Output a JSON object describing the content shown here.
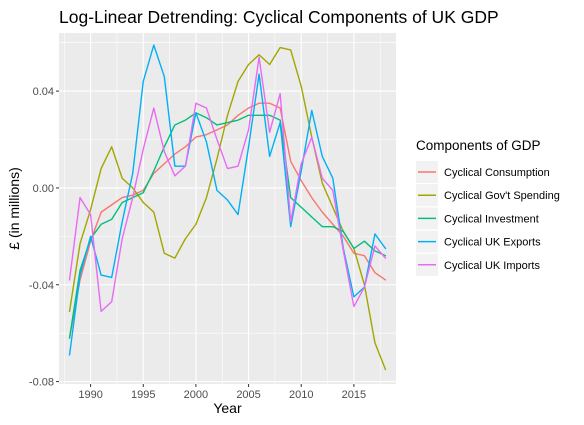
{
  "chart_data": {
    "type": "line",
    "title": "Log-Linear Detrending: Cyclical Components of UK GDP",
    "xlabel": "Year",
    "ylabel": "£ (in millions)",
    "xlim": [
      1987,
      2019
    ],
    "ylim": [
      -0.081,
      0.064
    ],
    "x_ticks": [
      1990,
      1995,
      2000,
      2005,
      2010,
      2015
    ],
    "x_tick_labels": [
      "1990",
      "1995",
      "2000",
      "2005",
      "2010",
      "2015"
    ],
    "y_ticks": [
      -0.08,
      -0.04,
      0.0,
      0.04
    ],
    "y_tick_labels": [
      "-0.08",
      "-0.04",
      "0.00",
      "0.04"
    ],
    "grid": true,
    "legend": {
      "title": "Components of GDP",
      "position": "right"
    },
    "x": [
      1988,
      1989,
      1990,
      1991,
      1992,
      1993,
      1994,
      1995,
      1996,
      1997,
      1998,
      1999,
      2000,
      2001,
      2002,
      2003,
      2004,
      2005,
      2006,
      2007,
      2008,
      2009,
      2010,
      2011,
      2012,
      2013,
      2014,
      2015,
      2016,
      2017,
      2018
    ],
    "series": [
      {
        "name": "Cyclical Consumption",
        "color": "#F8766D",
        "values": [
          -0.062,
          -0.038,
          -0.022,
          -0.01,
          -0.007,
          -0.004,
          -0.003,
          -0.001,
          0.006,
          0.01,
          0.014,
          0.017,
          0.021,
          0.022,
          0.024,
          0.026,
          0.03,
          0.033,
          0.035,
          0.035,
          0.033,
          0.011,
          0.003,
          -0.004,
          -0.01,
          -0.015,
          -0.02,
          -0.027,
          -0.028,
          -0.035,
          -0.038
        ]
      },
      {
        "name": "Cyclical Gov't Spending",
        "color": "#A3A500",
        "values": [
          -0.051,
          -0.023,
          -0.009,
          0.008,
          0.017,
          0.004,
          0.0,
          -0.006,
          -0.01,
          -0.027,
          -0.029,
          -0.021,
          -0.015,
          -0.004,
          0.012,
          0.03,
          0.044,
          0.051,
          0.055,
          0.051,
          0.058,
          0.057,
          0.042,
          0.021,
          0.002,
          -0.008,
          -0.018,
          -0.025,
          -0.04,
          -0.064,
          -0.075
        ]
      },
      {
        "name": "Cyclical Investment",
        "color": "#00BF7D",
        "values": [
          -0.062,
          -0.034,
          -0.021,
          -0.015,
          -0.013,
          -0.006,
          -0.004,
          -0.002,
          0.007,
          0.017,
          0.026,
          0.028,
          0.031,
          0.029,
          0.026,
          0.027,
          0.028,
          0.03,
          0.03,
          0.03,
          0.028,
          -0.004,
          -0.008,
          -0.012,
          -0.016,
          -0.016,
          -0.018,
          -0.025,
          -0.022,
          -0.026,
          -0.028
        ]
      },
      {
        "name": "Cyclical UK Exports",
        "color": "#00B0F6",
        "values": [
          -0.069,
          -0.036,
          -0.02,
          -0.036,
          -0.037,
          -0.014,
          0.006,
          0.044,
          0.059,
          0.046,
          0.009,
          0.009,
          0.031,
          0.019,
          -0.001,
          -0.005,
          -0.011,
          0.017,
          0.047,
          0.013,
          0.027,
          -0.016,
          0.007,
          0.032,
          0.013,
          0.004,
          -0.025,
          -0.045,
          -0.041,
          -0.019,
          -0.025
        ]
      },
      {
        "name": "Cyclical UK Imports",
        "color": "#E76BF3",
        "values": [
          -0.038,
          -0.004,
          -0.011,
          -0.051,
          -0.047,
          -0.021,
          -0.004,
          0.016,
          0.033,
          0.015,
          0.005,
          0.009,
          0.035,
          0.033,
          0.02,
          0.008,
          0.009,
          0.024,
          0.054,
          0.023,
          0.039,
          -0.014,
          0.01,
          0.021,
          0.004,
          -0.001,
          -0.026,
          -0.049,
          -0.041,
          -0.024,
          -0.029
        ]
      }
    ]
  }
}
